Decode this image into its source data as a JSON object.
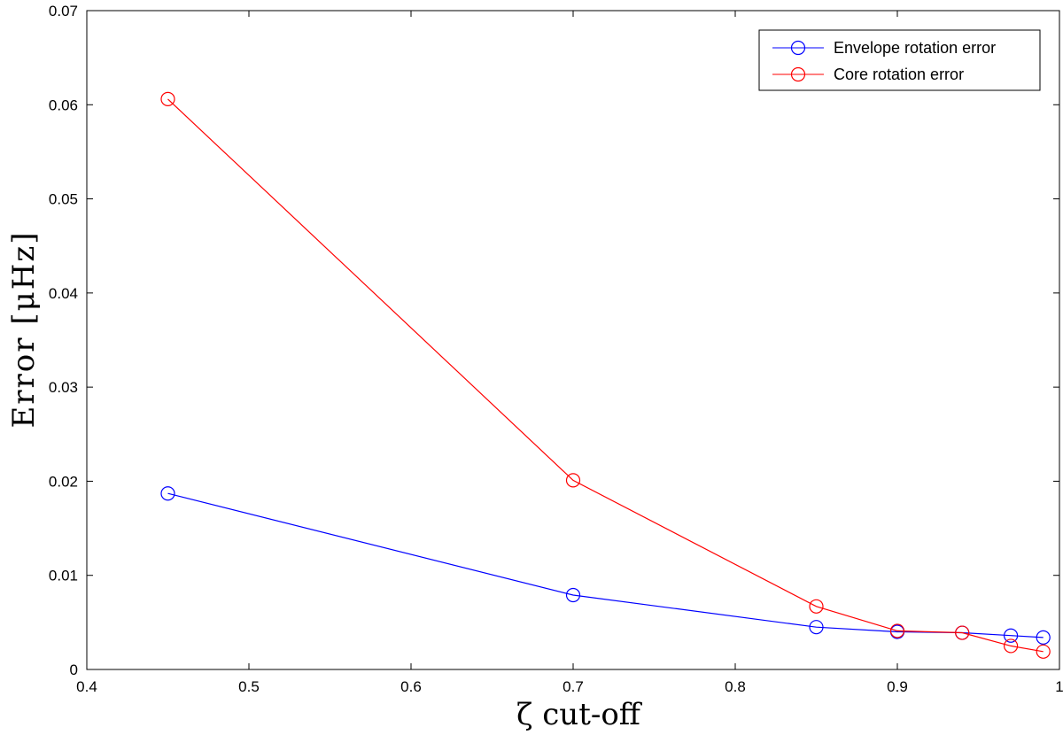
{
  "chart_data": {
    "type": "line",
    "title": "",
    "xlabel": "ζ cut-off",
    "ylabel": "Error [μHz]",
    "xlim": [
      0.4,
      1.0
    ],
    "ylim": [
      0,
      0.07
    ],
    "xticks": [
      0.4,
      0.5,
      0.6,
      0.7,
      0.8,
      0.9,
      1.0
    ],
    "xtick_labels": [
      "0.4",
      "0.5",
      "0.6",
      "0.7",
      "0.8",
      "0.9",
      "1"
    ],
    "yticks": [
      0,
      0.01,
      0.02,
      0.03,
      0.04,
      0.05,
      0.06,
      0.07
    ],
    "ytick_labels": [
      "0",
      "0.01",
      "0.02",
      "0.03",
      "0.04",
      "0.05",
      "0.06",
      "0.07"
    ],
    "grid": false,
    "legend_position": "top-right",
    "series": [
      {
        "name": "Envelope rotation error",
        "color": "#0000ff",
        "marker": "circle-open",
        "x": [
          0.45,
          0.7,
          0.85,
          0.9,
          0.94,
          0.97,
          0.99
        ],
        "y": [
          0.0187,
          0.0079,
          0.0045,
          0.004,
          0.0039,
          0.0036,
          0.0034
        ]
      },
      {
        "name": "Core rotation error",
        "color": "#ff0000",
        "marker": "circle-open",
        "x": [
          0.45,
          0.7,
          0.85,
          0.9,
          0.94,
          0.97,
          0.99
        ],
        "y": [
          0.0606,
          0.0201,
          0.0067,
          0.0041,
          0.0039,
          0.0025,
          0.0019
        ]
      }
    ]
  }
}
